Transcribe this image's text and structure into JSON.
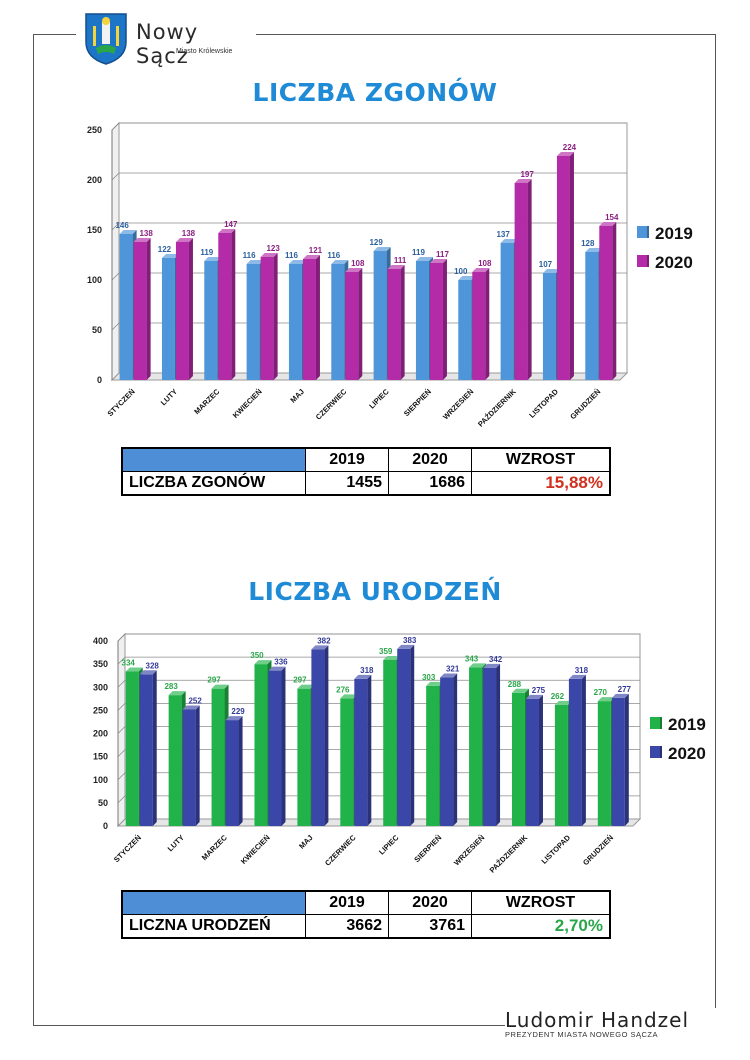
{
  "header": {
    "brand": "Nowy Sącz",
    "brand_sub": "Miasto Królewskie"
  },
  "footer": {
    "name": "Ludomir Handzel",
    "role": "PREZYDENT MIASTA NOWEGO SĄCZA"
  },
  "colors": {
    "title": "#1f8ad6",
    "chart1_2019": "#4f95d9",
    "chart1_2020": "#b32ba6",
    "chart2_2019": "#21b34a",
    "chart2_2020": "#3a46a8",
    "increase_deaths": "#d0311e",
    "increase_births": "#2aa64a"
  },
  "chart_data": [
    {
      "type": "bar",
      "title": "LICZBA ZGONÓW",
      "categories": [
        "STYCZEŃ",
        "LUTY",
        "MARZEC",
        "KWIECIEŃ",
        "MAJ",
        "CZERWIEC",
        "LIPIEC",
        "SIERPIEŃ",
        "WRZESIEŃ",
        "PAŹDZIERNIK",
        "LISTOPAD",
        "GRUDZIEŃ"
      ],
      "series": [
        {
          "name": "2019",
          "values": [
            146,
            122,
            119,
            116,
            116,
            116,
            129,
            119,
            100,
            137,
            107,
            128
          ]
        },
        {
          "name": "2020",
          "values": [
            138,
            138,
            147,
            123,
            121,
            108,
            111,
            117,
            108,
            197,
            224,
            154
          ]
        }
      ],
      "ylim": [
        0,
        250
      ],
      "yticks": [
        0,
        50,
        100,
        150,
        200,
        250
      ],
      "grid": true,
      "legend": "right"
    },
    {
      "type": "bar",
      "title": "LICZBA URODZEŃ",
      "categories": [
        "STYCZEŃ",
        "LUTY",
        "MARZEC",
        "KWIECIEŃ",
        "MAJ",
        "CZERWIEC",
        "LIPIEC",
        "SIERPIEŃ",
        "WRZESIEŃ",
        "PAŹDZIERNIK",
        "LISTOPAD",
        "GRUDZIEŃ"
      ],
      "series": [
        {
          "name": "2019",
          "values": [
            334,
            283,
            297,
            350,
            297,
            276,
            359,
            303,
            343,
            288,
            262,
            270
          ]
        },
        {
          "name": "2020",
          "values": [
            328,
            252,
            229,
            336,
            382,
            318,
            383,
            321,
            342,
            275,
            318,
            277
          ]
        }
      ],
      "ylim": [
        0,
        400
      ],
      "yticks": [
        0,
        50,
        100,
        150,
        200,
        250,
        300,
        350,
        400
      ],
      "grid": true,
      "legend": "right"
    }
  ],
  "table_deaths": {
    "h2019": "2019",
    "h2020": "2020",
    "hinc": "WZROST",
    "label": "LICZBA ZGONÓW",
    "v2019": "1455",
    "v2020": "1686",
    "inc": "15,88%"
  },
  "table_births": {
    "h2019": "2019",
    "h2020": "2020",
    "hinc": "WZROST",
    "label": "LICZNA URODZEŃ",
    "v2019": "3662",
    "v2020": "3761",
    "inc": "2,70%"
  }
}
